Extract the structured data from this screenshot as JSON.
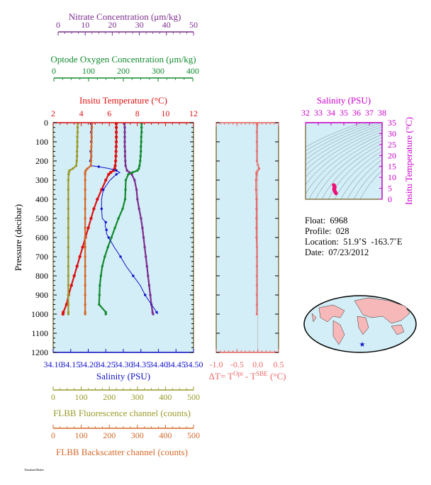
{
  "colors": {
    "nitrate": "#7b2d8e",
    "oxygen": "#118a2e",
    "temperature": "#dd1111",
    "salinity": "#1111cc",
    "flbb_fluor": "#9a9a2a",
    "flbb_back": "#d4692a",
    "delta_t": "#ee6666",
    "ts_axis": "#cc00cc",
    "plot_bg": "#d4eef7",
    "frame": "#6b5a1e"
  },
  "axes": {
    "nitrate": {
      "label": "Nitrate Concentration (μm/kg)",
      "ticks": [
        "0",
        "10",
        "20",
        "30",
        "40",
        "50"
      ]
    },
    "oxygen": {
      "label": "Optode Oxygen Concentration (μm/kg)",
      "ticks": [
        "0",
        "100",
        "200",
        "300",
        "400"
      ]
    },
    "temperature": {
      "label": "Insitu Temperature (°C)",
      "ticks": [
        "2",
        "4",
        "6",
        "8",
        "10",
        "12"
      ]
    },
    "salinity": {
      "label": "Salinity (PSU)",
      "ticks": [
        "34.10",
        "34.15",
        "34.20",
        "34.25",
        "34.30",
        "34.35",
        "34.40",
        "34.45",
        "34.50"
      ]
    },
    "pressure": {
      "label": "Pressure (decibar)",
      "ticks": [
        "0",
        "100",
        "200",
        "300",
        "400",
        "500",
        "600",
        "700",
        "800",
        "900",
        "1000",
        "1100",
        "1200"
      ]
    },
    "delta_t": {
      "label_main": "ΔT= T",
      "label_sup1": "Opt",
      "label_mid": " - T",
      "label_sup2": "SBE",
      "label_end": " (°C)",
      "ticks": [
        "-1.0",
        "-0.5",
        "0.0",
        "0.5"
      ]
    },
    "flbb_fluor": {
      "label": "FLBB Fluorescence channel (counts)",
      "ticks": [
        "0",
        "100",
        "200",
        "300",
        "400",
        "500"
      ]
    },
    "flbb_back": {
      "label": "FLBB Backscatter channel (counts)",
      "ticks": [
        "0",
        "100",
        "200",
        "300",
        "400",
        "500"
      ]
    },
    "ts_salinity": {
      "label": "Salinity (PSU)",
      "ticks": [
        "32",
        "33",
        "34",
        "35",
        "36",
        "37",
        "38"
      ]
    },
    "ts_temperature": {
      "label": "Insitu Temperature (°C)",
      "ticks": [
        "0",
        "5",
        "10",
        "15",
        "20",
        "25",
        "30",
        "35"
      ]
    }
  },
  "info": {
    "float": "Float:  6968",
    "profile": "Profile:  028",
    "location": "Location:  51.9˚S  -163.7˚E",
    "date": "Date:  07/23/2012"
  },
  "footer": "ThumbnailMaker",
  "chart_data": [
    {
      "type": "line",
      "name": "main-profile",
      "ylim": [
        1200,
        0
      ],
      "series": [
        {
          "name": "Nitrate",
          "axis": "nitrate",
          "xlim": [
            0,
            50
          ],
          "p": [
            5,
            25,
            50,
            75,
            100,
            125,
            150,
            175,
            200,
            225,
            250,
            260,
            270,
            300,
            350,
            400,
            450,
            500,
            550,
            600,
            650,
            700,
            750,
            800,
            850,
            900,
            950,
            990,
            1000
          ],
          "x": [
            25.4,
            25.5,
            25.5,
            25.5,
            25.5,
            25.5,
            25.6,
            25.6,
            25.7,
            25.8,
            26.3,
            27.2,
            28.0,
            29.0,
            29.7,
            30.0,
            30.6,
            31.3,
            31.8,
            32.2,
            32.6,
            33.0,
            33.4,
            33.8,
            34.2,
            34.6,
            35.0,
            35.4,
            35.6
          ]
        },
        {
          "name": "Oxygen",
          "axis": "oxygen",
          "xlim": [
            0,
            400
          ],
          "p": [
            5,
            25,
            50,
            75,
            100,
            125,
            150,
            175,
            200,
            225,
            240,
            250,
            260,
            270,
            300,
            350,
            400,
            450,
            500,
            550,
            600,
            650,
            700,
            750,
            800,
            850,
            900,
            950,
            990,
            1000
          ],
          "x": [
            252,
            252,
            252,
            251,
            251,
            250,
            250,
            249,
            248,
            246,
            244,
            240,
            226,
            214,
            207,
            206,
            205,
            198,
            186,
            176,
            166,
            156,
            147,
            140,
            136,
            133,
            132,
            131,
            150,
            150
          ]
        },
        {
          "name": "Temperature",
          "axis": "temperature",
          "xlim": [
            2,
            12
          ],
          "p": [
            5,
            25,
            50,
            75,
            100,
            125,
            150,
            175,
            200,
            225,
            240,
            250,
            260,
            270,
            300,
            350,
            400,
            450,
            500,
            550,
            600,
            650,
            700,
            750,
            800,
            850,
            900,
            950,
            990,
            1000
          ],
          "x": [
            6.5,
            6.5,
            6.5,
            6.5,
            6.5,
            6.49,
            6.48,
            6.47,
            6.45,
            6.42,
            6.38,
            6.3,
            6.1,
            5.95,
            5.75,
            5.45,
            5.15,
            4.9,
            4.7,
            4.5,
            4.3,
            4.1,
            3.9,
            3.7,
            3.5,
            3.3,
            3.1,
            2.95,
            2.72,
            2.7
          ]
        },
        {
          "name": "Salinity",
          "axis": "salinity",
          "xlim": [
            34.1,
            34.5
          ],
          "p": [
            5,
            25,
            50,
            75,
            100,
            125,
            150,
            175,
            200,
            225,
            230,
            240,
            250,
            260,
            270,
            300,
            350,
            400,
            450,
            500,
            520,
            540,
            560,
            580,
            600,
            650,
            700,
            750,
            800,
            850,
            900,
            950,
            990,
            1000
          ],
          "x": [
            34.208,
            34.208,
            34.208,
            34.208,
            34.208,
            34.208,
            34.207,
            34.207,
            34.206,
            34.21,
            34.23,
            34.26,
            34.28,
            34.29,
            34.28,
            34.262,
            34.243,
            34.238,
            34.238,
            34.24,
            34.25,
            34.248,
            34.252,
            34.252,
            34.258,
            34.274,
            34.292,
            34.308,
            34.328,
            34.348,
            34.362,
            34.38,
            34.395,
            34.398
          ]
        },
        {
          "name": "FLBB Fluorescence",
          "axis": "flbb_fluor",
          "xlim": [
            0,
            500
          ],
          "p": [
            5,
            25,
            50,
            75,
            100,
            125,
            150,
            175,
            200,
            225,
            240,
            250,
            260,
            270,
            300,
            350,
            400,
            450,
            500,
            550,
            600,
            650,
            700,
            750,
            800,
            850,
            900,
            950,
            990,
            1000
          ],
          "x": [
            88,
            87,
            87,
            86,
            86,
            86,
            85,
            85,
            84,
            82,
            70,
            58,
            56,
            55,
            54,
            54,
            54,
            54,
            54,
            54,
            54,
            54,
            54,
            54,
            54,
            54,
            54,
            54,
            54,
            54
          ]
        },
        {
          "name": "FLBB Backscatter",
          "axis": "flbb_back",
          "xlim": [
            0,
            500
          ],
          "p": [
            5,
            25,
            50,
            75,
            100,
            125,
            150,
            175,
            200,
            225,
            240,
            250,
            260,
            270,
            300,
            350,
            400,
            450,
            500,
            550,
            600,
            650,
            700,
            750,
            800,
            850,
            900,
            950,
            990,
            1000
          ],
          "x": [
            138,
            138,
            137,
            137,
            137,
            136,
            136,
            136,
            135,
            134,
            122,
            116,
            114,
            114,
            114,
            114,
            114,
            114,
            114,
            114,
            114,
            114,
            114,
            114,
            114,
            114,
            114,
            114,
            114,
            114
          ]
        }
      ]
    },
    {
      "type": "line",
      "name": "delta-t-profile",
      "xlim": [
        -1.0,
        0.5
      ],
      "ylim": [
        1200,
        0
      ],
      "p": [
        5,
        50,
        100,
        150,
        200,
        220,
        240,
        250,
        260,
        270,
        300,
        350,
        400,
        450,
        500,
        550,
        600,
        650,
        700,
        750,
        800,
        850,
        900,
        950,
        1000
      ],
      "x": [
        -0.02,
        -0.02,
        -0.02,
        -0.02,
        -0.02,
        0.0,
        0.03,
        0.0,
        -0.03,
        -0.03,
        -0.04,
        -0.04,
        -0.03,
        -0.03,
        -0.03,
        -0.03,
        -0.03,
        -0.02,
        -0.02,
        -0.02,
        -0.02,
        -0.02,
        -0.02,
        -0.02,
        -0.02
      ]
    },
    {
      "type": "scatter",
      "name": "ts-diagram",
      "xlim": [
        32,
        38
      ],
      "ylim": [
        0,
        35
      ],
      "x": [
        34.21,
        34.22,
        34.24,
        34.26,
        34.27,
        34.28,
        34.29,
        34.26,
        34.24,
        34.23,
        34.25,
        34.27,
        34.3,
        34.33,
        34.36,
        34.39
      ],
      "y": [
        6.5,
        6.45,
        6.3,
        6.0,
        5.8,
        5.6,
        5.3,
        5.0,
        4.8,
        4.6,
        4.3,
        4.0,
        3.6,
        3.3,
        3.0,
        2.7
      ]
    }
  ]
}
